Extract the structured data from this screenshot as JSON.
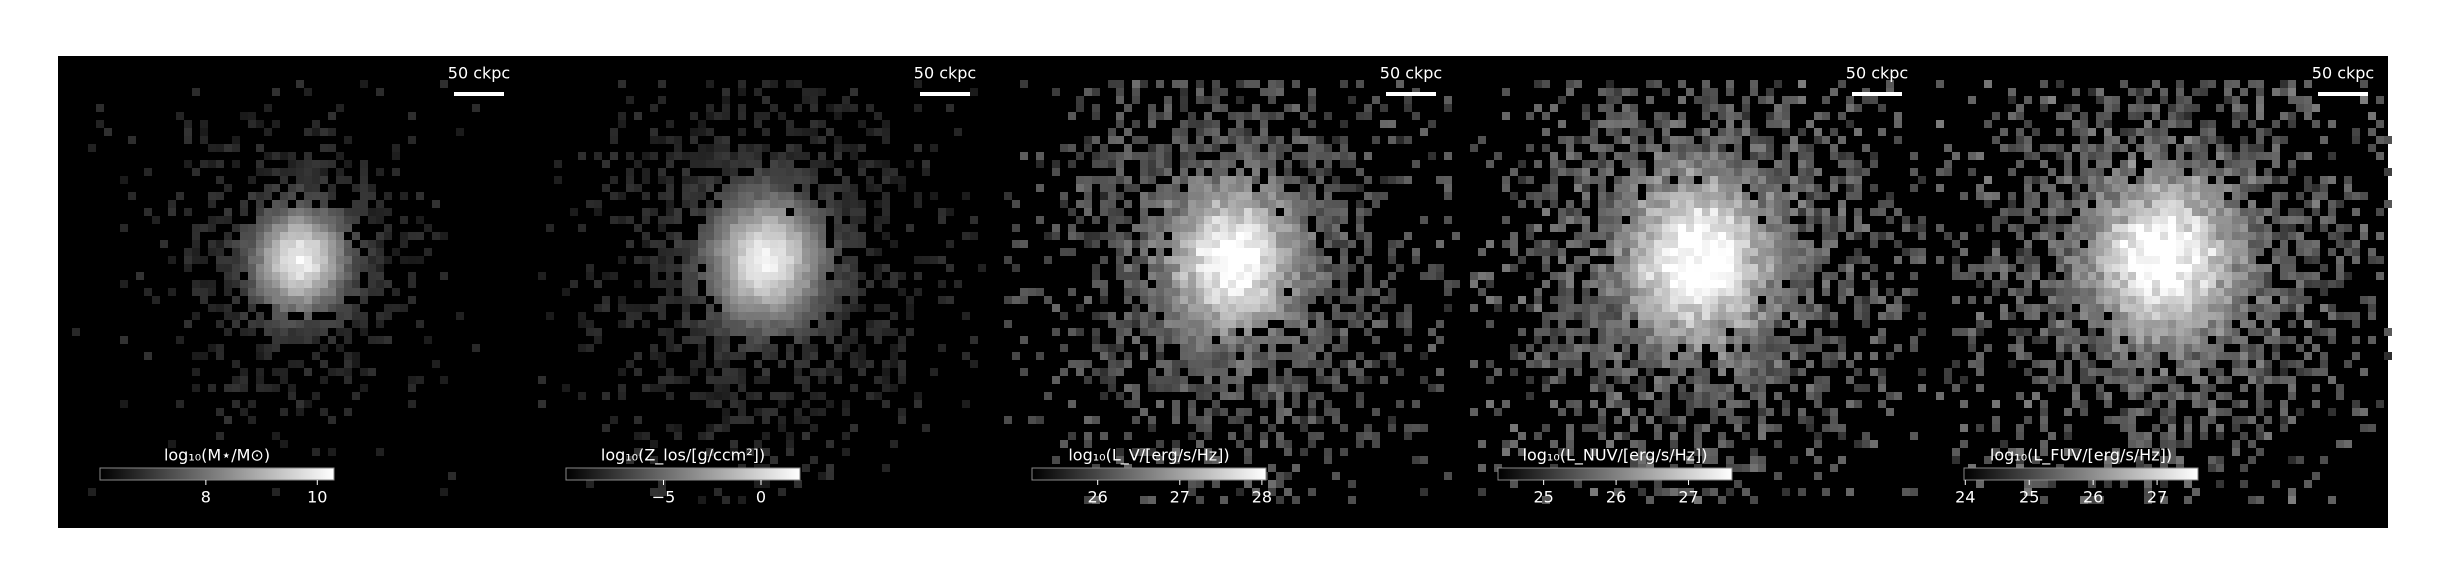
{
  "chart_data": [
    {
      "type": "image",
      "scale_bar_label": "50 ckpc",
      "colorbar_label": "log₁₀(M⋆/M⊙)",
      "clim": [
        6.1,
        10.3
      ],
      "cticks": [
        8,
        10
      ],
      "cmap": "gray",
      "spread": 1.0
    },
    {
      "type": "image",
      "scale_bar_label": "50 ckpc",
      "colorbar_label": "log₁₀(Z_los/[g/ccm²])",
      "clim": [
        -10,
        2
      ],
      "cticks": [
        {
          "value": -5,
          "label": "−5"
        },
        0
      ],
      "cmap": "gray",
      "spread": 1.3
    },
    {
      "type": "image",
      "scale_bar_label": "50 ckpc",
      "colorbar_label": "log₁₀(L_V/[erg/s/Hz])",
      "clim": [
        25.2,
        28.05
      ],
      "cticks": [
        26,
        27,
        28
      ],
      "cmap": "gray",
      "spread": 1.5
    },
    {
      "type": "image",
      "scale_bar_label": "50 ckpc",
      "colorbar_label": "log₁₀(L_NUV/[erg/s/Hz])",
      "clim": [
        24.37,
        27.6
      ],
      "cticks": [
        25,
        26,
        27
      ],
      "cmap": "gray",
      "spread": 1.7
    },
    {
      "type": "image",
      "scale_bar_label": "50 ckpc",
      "colorbar_label": "log₁₀(L_FUV/[erg/s/Hz])",
      "clim": [
        23.98,
        27.64
      ],
      "cticks": [
        24,
        25,
        26,
        27
      ],
      "cmap": "gray",
      "spread": 1.7
    }
  ]
}
